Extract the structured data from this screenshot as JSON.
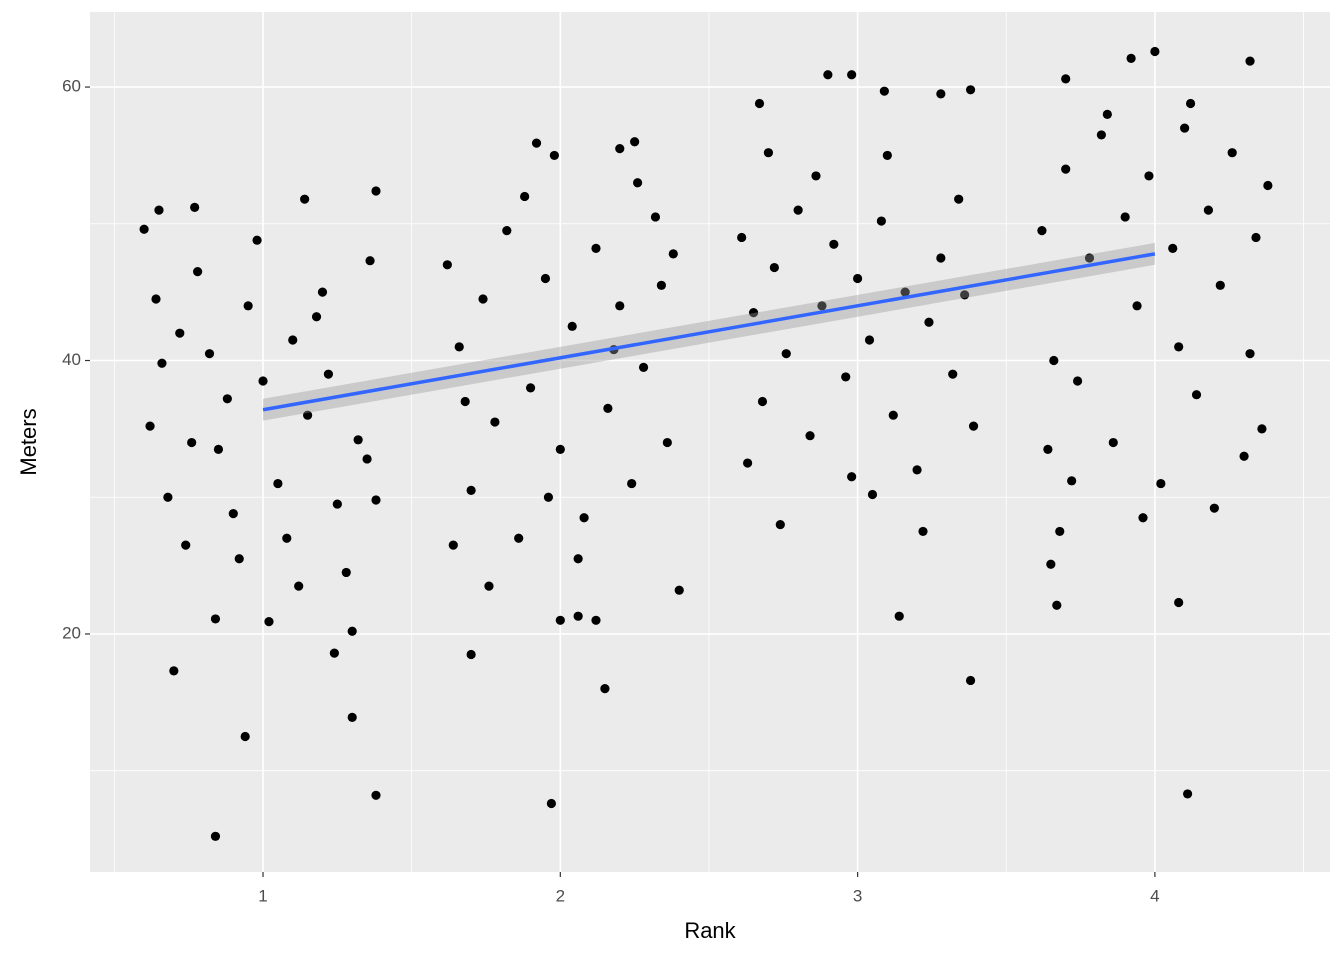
{
  "chart_data": {
    "type": "scatter",
    "x_label": "Rank",
    "y_label": "Meters",
    "xlim": [
      0.418,
      4.589
    ],
    "ylim": [
      2.59,
      65.49
    ],
    "xticks": [
      1,
      2,
      3,
      4
    ],
    "yticks": [
      20,
      40,
      60
    ],
    "grid": true,
    "color": "#000000",
    "x": [
      0.84,
      0.94,
      1.38,
      1.3,
      0.7,
      1.24,
      1.3,
      0.84,
      1.02,
      1.38,
      1.14,
      0.77,
      0.65,
      0.6,
      0.62,
      0.66,
      0.72,
      0.78,
      0.85,
      0.9,
      0.95,
      1.0,
      1.05,
      1.1,
      1.15,
      1.2,
      1.25,
      1.32,
      1.36,
      0.68,
      0.74,
      0.82,
      0.88,
      0.98,
      1.08,
      1.18,
      1.28,
      1.35,
      0.64,
      1.12,
      0.92,
      1.22,
      0.76,
      1.38,
      1.97,
      2.15,
      1.7,
      2.0,
      2.06,
      2.12,
      2.25,
      1.92,
      2.2,
      1.98,
      1.62,
      1.66,
      1.7,
      1.74,
      1.78,
      1.82,
      1.86,
      1.9,
      1.95,
      2.0,
      2.04,
      2.08,
      2.12,
      2.16,
      2.2,
      2.24,
      2.28,
      2.32,
      2.36,
      2.4,
      1.64,
      1.76,
      1.88,
      2.06,
      2.18,
      2.26,
      2.34,
      1.68,
      1.96,
      2.38,
      3.38,
      3.14,
      2.9,
      2.98,
      2.67,
      3.28,
      3.38,
      3.09,
      2.61,
      2.65,
      2.68,
      2.72,
      2.76,
      2.8,
      2.84,
      2.88,
      2.92,
      2.96,
      3.0,
      3.04,
      3.08,
      3.12,
      3.16,
      3.2,
      3.24,
      3.28,
      3.32,
      3.36,
      3.39,
      2.63,
      2.74,
      2.86,
      2.98,
      3.1,
      3.22,
      3.34,
      2.7,
      3.05,
      4.11,
      4.08,
      3.67,
      3.65,
      3.92,
      4.32,
      4.0,
      3.7,
      3.62,
      3.66,
      3.7,
      3.74,
      3.78,
      3.82,
      3.86,
      3.9,
      3.94,
      3.98,
      4.02,
      4.06,
      4.1,
      4.14,
      4.18,
      4.22,
      4.26,
      4.3,
      4.34,
      4.38,
      3.64,
      3.72,
      3.84,
      3.96,
      4.08,
      4.2,
      4.32,
      4.36,
      3.68,
      4.12
    ],
    "values": [
      5.2,
      12.5,
      8.2,
      13.9,
      17.3,
      18.6,
      20.2,
      21.1,
      20.9,
      52.4,
      51.8,
      51.2,
      51.0,
      49.6,
      35.2,
      39.8,
      42.0,
      46.5,
      33.5,
      28.8,
      44.0,
      38.5,
      31.0,
      41.5,
      36.0,
      45.0,
      29.5,
      34.2,
      47.3,
      30.0,
      26.5,
      40.5,
      37.2,
      48.8,
      27.0,
      43.2,
      24.5,
      32.8,
      44.5,
      23.5,
      25.5,
      39.0,
      34.0,
      29.8,
      7.6,
      16.0,
      18.5,
      21.0,
      21.3,
      21.0,
      56.0,
      55.9,
      55.5,
      55.0,
      47.0,
      41.0,
      30.5,
      44.5,
      35.5,
      49.5,
      27.0,
      38.0,
      46.0,
      33.5,
      42.5,
      28.5,
      48.2,
      36.5,
      44.0,
      31.0,
      39.5,
      50.5,
      34.0,
      23.2,
      26.5,
      23.5,
      52.0,
      25.5,
      40.8,
      53.0,
      45.5,
      37.0,
      30.0,
      47.8,
      16.6,
      21.3,
      60.9,
      60.9,
      58.8,
      59.5,
      59.8,
      59.7,
      49.0,
      43.5,
      37.0,
      46.8,
      40.5,
      51.0,
      34.5,
      44.0,
      48.5,
      38.8,
      46.0,
      41.5,
      50.2,
      36.0,
      45.0,
      32.0,
      42.8,
      47.5,
      39.0,
      44.8,
      35.2,
      32.5,
      28.0,
      53.5,
      31.5,
      55.0,
      27.5,
      51.8,
      55.2,
      30.2,
      8.3,
      22.3,
      22.1,
      25.1,
      62.1,
      61.9,
      62.6,
      60.6,
      49.5,
      40.0,
      54.0,
      38.5,
      47.5,
      56.5,
      34.0,
      50.5,
      44.0,
      53.5,
      31.0,
      48.2,
      57.0,
      37.5,
      51.0,
      45.5,
      55.2,
      33.0,
      49.0,
      52.8,
      33.5,
      31.2,
      58.0,
      28.5,
      41.0,
      29.2,
      40.5,
      35.0,
      27.5,
      58.8
    ],
    "fit": {
      "color": "#3366ff",
      "x": [
        1,
        4
      ],
      "values": [
        36.4,
        47.8
      ],
      "lower": [
        35.6,
        47.0
      ],
      "upper": [
        37.2,
        48.6
      ]
    }
  }
}
